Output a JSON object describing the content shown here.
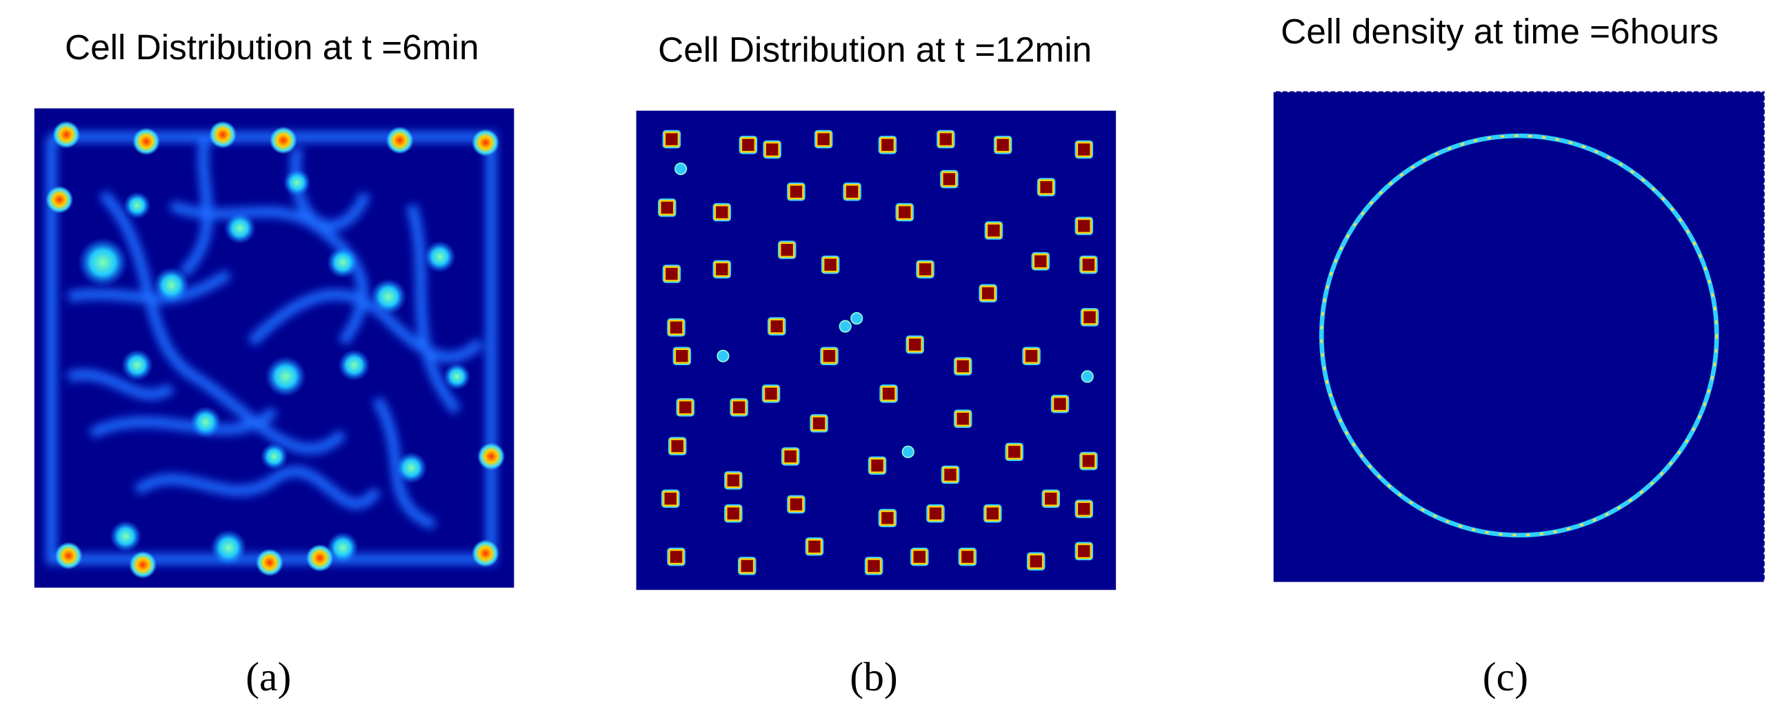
{
  "panels": [
    {
      "title": "Cell Distribution at t =6min",
      "caption": "(a)"
    },
    {
      "title": "Cell Distribution at t =12min",
      "caption": "(b)"
    },
    {
      "title": "Cell density  at time =6hours",
      "caption": "(c)"
    }
  ]
}
